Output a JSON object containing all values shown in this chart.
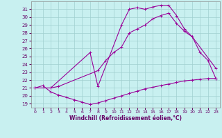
{
  "xlabel": "Windchill (Refroidissement éolien,°C)",
  "bg_color": "#c8f0f0",
  "grid_color": "#a0d0d0",
  "line_color": "#990099",
  "ylim": [
    18.5,
    32.0
  ],
  "xlim": [
    -0.5,
    23.5
  ],
  "yticks": [
    19,
    20,
    21,
    22,
    23,
    24,
    25,
    26,
    27,
    28,
    29,
    30,
    31
  ],
  "xticks": [
    0,
    1,
    2,
    3,
    4,
    5,
    6,
    7,
    8,
    9,
    10,
    11,
    12,
    13,
    14,
    15,
    16,
    17,
    18,
    19,
    20,
    21,
    22,
    23
  ],
  "c1_x": [
    0,
    1,
    2,
    3,
    4,
    5,
    6,
    7,
    8,
    9,
    10,
    11,
    12,
    13,
    14,
    15,
    16,
    17,
    18,
    19,
    20,
    21,
    22,
    23
  ],
  "c1_y": [
    21.0,
    21.3,
    20.5,
    20.1,
    19.8,
    19.5,
    19.2,
    18.9,
    19.1,
    19.4,
    19.7,
    20.0,
    20.3,
    20.6,
    20.9,
    21.1,
    21.3,
    21.5,
    21.7,
    21.9,
    22.0,
    22.1,
    22.2,
    22.2
  ],
  "c2_x": [
    0,
    2,
    7,
    8,
    11,
    12,
    13,
    14,
    15,
    16,
    17,
    18,
    19,
    20,
    23
  ],
  "c2_y": [
    21.0,
    21.0,
    25.5,
    21.2,
    29.0,
    31.0,
    31.2,
    31.0,
    31.3,
    31.5,
    31.5,
    30.2,
    28.5,
    27.5,
    23.5
  ],
  "c3_x": [
    0,
    2,
    3,
    8,
    9,
    10,
    11,
    12,
    13,
    14,
    15,
    16,
    17,
    18,
    19,
    20,
    21,
    22,
    23
  ],
  "c3_y": [
    21.0,
    21.0,
    21.2,
    23.2,
    24.5,
    25.5,
    26.2,
    28.0,
    28.5,
    29.0,
    29.8,
    30.2,
    30.5,
    29.2,
    28.2,
    27.5,
    25.5,
    24.5,
    22.2
  ],
  "dpi": 100,
  "figsize": [
    3.2,
    2.0
  ]
}
